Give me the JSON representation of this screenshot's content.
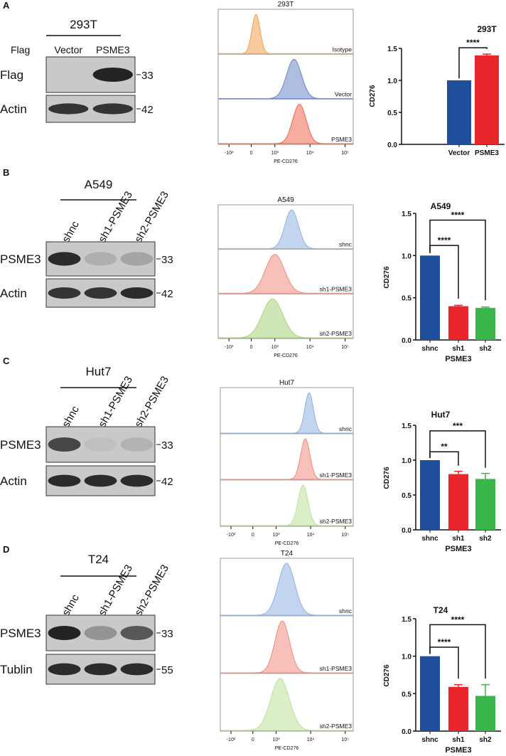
{
  "panels": [
    {
      "id": "A",
      "cell_line": "293T",
      "header_label": "Flag",
      "lanes": [
        "Vector",
        "PSME3"
      ],
      "lanes_rotated": false,
      "blots": [
        {
          "protein": "Flag",
          "mw": "33",
          "bands": [
            0.0,
            0.95
          ]
        },
        {
          "protein": "Actin",
          "mw": "42",
          "bands": [
            0.85,
            0.85
          ]
        }
      ],
      "flow": {
        "title": "293T",
        "xlabel": "PE-CD276",
        "ticks": [
          "-10³",
          "0",
          "10³",
          "10⁴",
          "10⁵"
        ],
        "tracks": [
          {
            "label": "Isotype",
            "color": "#f0a050",
            "peak": 200,
            "spread": 0.12
          },
          {
            "label": "Vector",
            "color": "#6d86c8",
            "peak": 3500,
            "spread": 0.22
          },
          {
            "label": "PSME3",
            "color": "#ee6a4e",
            "peak": 5000,
            "spread": 0.2
          }
        ]
      }
    },
    {
      "id": "B",
      "cell_line": "A549",
      "lanes": [
        "shnc",
        "sh1-PSME3",
        "sh2-PSME3"
      ],
      "lanes_rotated": true,
      "blots": [
        {
          "protein": "PSME3",
          "mw": "33",
          "bands": [
            0.9,
            0.15,
            0.2
          ]
        },
        {
          "protein": "Actin",
          "mw": "42",
          "bands": [
            0.85,
            0.85,
            0.9
          ]
        }
      ],
      "flow": {
        "title": "A549",
        "xlabel": "PE-CD276",
        "ticks": [
          "-10³",
          "0",
          "10³",
          "10⁴",
          "10⁵"
        ],
        "tracks": [
          {
            "label": "shnc",
            "color": "#8fb3e0",
            "peak": 3000,
            "spread": 0.2
          },
          {
            "label": "sh1-PSME3",
            "color": "#f08c80",
            "peak": 1000,
            "spread": 0.28
          },
          {
            "label": "sh2-PSME3",
            "color": "#a8d47a",
            "peak": 900,
            "spread": 0.3
          }
        ]
      }
    },
    {
      "id": "C",
      "cell_line": "Hut7",
      "lanes": [
        "shnc",
        "sh1-PSME3",
        "sh2-PSME3"
      ],
      "lanes_rotated": true,
      "blots": [
        {
          "protein": "PSME3",
          "mw": "33",
          "bands": [
            0.75,
            0.05,
            0.12
          ]
        },
        {
          "protein": "Actin",
          "mw": "42",
          "bands": [
            0.9,
            0.9,
            0.9
          ]
        }
      ],
      "flow": {
        "title": "Hut7",
        "xlabel": "PE-CD276",
        "ticks": [
          "-10³",
          "0",
          "10³",
          "10⁴",
          "10⁵"
        ],
        "tracks": [
          {
            "label": "shnc",
            "color": "#8fb3e0",
            "peak": 9000,
            "spread": 0.13
          },
          {
            "label": "sh1-PSME3",
            "color": "#f08c80",
            "peak": 7000,
            "spread": 0.14
          },
          {
            "label": "sh2-PSME3",
            "color": "#bfe09a",
            "peak": 6000,
            "spread": 0.15
          }
        ]
      }
    },
    {
      "id": "D",
      "cell_line": "T24",
      "lanes": [
        "shnc",
        "sh1-PSME3",
        "sh2-PSME3"
      ],
      "lanes_rotated": true,
      "blots": [
        {
          "protein": "PSME3",
          "mw": "33",
          "bands": [
            0.95,
            0.3,
            0.65
          ]
        },
        {
          "protein": "Tublin",
          "mw": "55",
          "bands": [
            0.9,
            0.9,
            0.9
          ]
        }
      ],
      "flow": {
        "title": "T24",
        "xlabel": "PE-CD276",
        "ticks": [
          "-10³",
          "0",
          "10³",
          "10⁴",
          "10⁵"
        ],
        "tracks": [
          {
            "label": "shnc",
            "color": "#8fb3e0",
            "peak": 2000,
            "spread": 0.25
          },
          {
            "label": "sh1-PSME3",
            "color": "#f08c80",
            "peak": 1500,
            "spread": 0.22
          },
          {
            "label": "sh2-PSME3",
            "color": "#bfe09a",
            "peak": 1300,
            "spread": 0.28
          }
        ]
      }
    }
  ],
  "chart_data": [
    {
      "type": "bar",
      "title": "293T",
      "ylabel": "CD276",
      "xlabel": "",
      "ylim": [
        0,
        1.5
      ],
      "yticks": [
        "0.0",
        "0.5",
        "1.0",
        "1.5"
      ],
      "categories": [
        "Vector",
        "PSME3"
      ],
      "values": [
        1.0,
        1.39
      ],
      "errors": [
        0,
        0.02
      ],
      "colors": [
        "#1f4e9c",
        "#e8262b"
      ],
      "comparisons": [
        {
          "from": 0,
          "to": 1,
          "label": "****"
        }
      ]
    },
    {
      "type": "bar",
      "title": "A549",
      "ylabel": "CD276",
      "xlabel": "PSME3",
      "ylim": [
        0,
        1.5
      ],
      "yticks": [
        "0.0",
        "0.5",
        "1.0",
        "1.5"
      ],
      "categories": [
        "shnc",
        "sh1",
        "sh2"
      ],
      "values": [
        1.0,
        0.4,
        0.38
      ],
      "errors": [
        0,
        0.01,
        0.01
      ],
      "colors": [
        "#1f4e9c",
        "#e8262b",
        "#3ab54a"
      ],
      "comparisons": [
        {
          "from": 0,
          "to": 1,
          "label": "****"
        },
        {
          "from": 0,
          "to": 2,
          "label": "****"
        }
      ]
    },
    {
      "type": "bar",
      "title": "Hut7",
      "ylabel": "CD276",
      "xlabel": "PSME3",
      "ylim": [
        0,
        1.5
      ],
      "yticks": [
        "0.0",
        "0.5",
        "1.0",
        "1.5"
      ],
      "categories": [
        "shnc",
        "sh1",
        "sh2"
      ],
      "values": [
        1.0,
        0.8,
        0.73
      ],
      "errors": [
        0,
        0.04,
        0.08
      ],
      "colors": [
        "#1f4e9c",
        "#e8262b",
        "#3ab54a"
      ],
      "comparisons": [
        {
          "from": 0,
          "to": 1,
          "label": "**"
        },
        {
          "from": 0,
          "to": 2,
          "label": "***"
        }
      ]
    },
    {
      "type": "bar",
      "title": "T24",
      "ylabel": "CD276",
      "xlabel": "PSME3",
      "ylim": [
        0,
        1.5
      ],
      "yticks": [
        "0.0",
        "0.5",
        "1.0",
        "1.5"
      ],
      "categories": [
        "shnc",
        "sh1",
        "sh2"
      ],
      "values": [
        1.0,
        0.59,
        0.47
      ],
      "errors": [
        0,
        0.03,
        0.15
      ],
      "colors": [
        "#1f4e9c",
        "#e8262b",
        "#3ab54a"
      ],
      "comparisons": [
        {
          "from": 0,
          "to": 1,
          "label": "****"
        },
        {
          "from": 0,
          "to": 2,
          "label": "****"
        }
      ]
    }
  ]
}
